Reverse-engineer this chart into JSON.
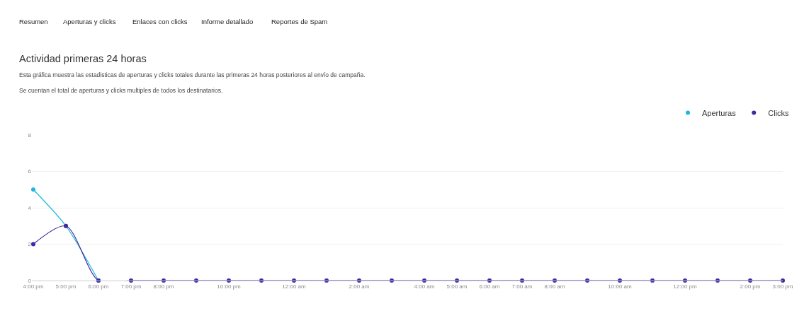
{
  "chart_data": {
    "type": "line",
    "title": "Actividad primeras 24 horas",
    "subtitle": "Esta gráfica muestra las estadisticas de aperturas y clicks totales durante las primeras 24 horas posteriores al envío de campaña.\nSe cuentan el total de aperturas y clicks multiples de todos los destinatarios.",
    "annotations": [
      "Resumen",
      "Aperturas y clicks",
      "Enlaces con clicks",
      "Informe detallado",
      "Reportes de Spam"
    ],
    "categories": [
      "4:00 pm",
      "5:00 pm",
      "6:00 pm",
      "7:00 pm",
      "8:00 pm",
      null,
      "10:00 pm",
      null,
      "12:00 am",
      null,
      "2:00 am",
      null,
      "4:00 am",
      "5:00 am",
      "6:00 am",
      "7:00 am",
      "8:00 am",
      null,
      "10:00 am",
      null,
      "12:00 pm",
      null,
      "2:00 pm",
      "3:00 pm"
    ],
    "series": [
      {
        "name": "Aperturas",
        "color": "#1ab8db",
        "values": [
          5,
          3,
          0,
          null,
          null,
          null,
          null,
          null,
          null,
          null,
          null,
          null,
          null,
          null,
          null,
          null,
          null,
          null,
          null,
          null,
          null,
          null,
          null,
          null
        ]
      },
      {
        "name": "Clicks",
        "color": "#4527a0",
        "values": [
          2,
          3,
          0,
          0,
          0,
          0,
          0,
          0,
          0,
          0,
          0,
          0,
          0,
          0,
          0,
          0,
          0,
          0,
          0,
          0,
          0,
          0,
          0,
          0
        ]
      }
    ],
    "ylim": [
      0,
      8
    ],
    "yticks": [
      0,
      2,
      4,
      6,
      8
    ],
    "grid": "y",
    "legend": "top right",
    "marker": "circle",
    "line_style": "solid"
  }
}
